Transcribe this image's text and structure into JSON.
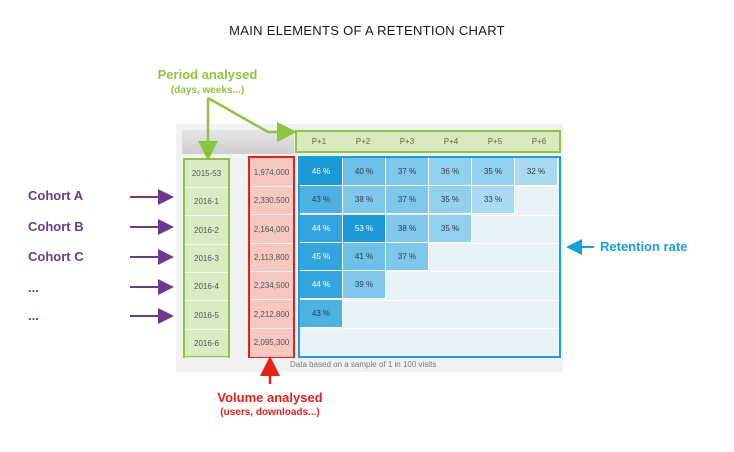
{
  "title": "MAIN ELEMENTS OF A RETENTION CHART",
  "period": {
    "label": "Period analysed",
    "sub": "(days, weeks...)"
  },
  "volume": {
    "label": "Volume analysed",
    "sub": "(users, downloads...)"
  },
  "retention_label": "Retention rate",
  "cohort_labels": [
    "Cohort A",
    "Cohort B",
    "Cohort C",
    "...",
    "..."
  ],
  "periods": [
    "P+1",
    "P+2",
    "P+3",
    "P+4",
    "P+5",
    "P+6"
  ],
  "cohorts": [
    {
      "date": "2015-53",
      "volume": "1,974,000",
      "rates": [
        "46 %",
        "40 %",
        "37 %",
        "36 %",
        "35 %",
        "32 %"
      ]
    },
    {
      "date": "2016-1",
      "volume": "2,330,500",
      "rates": [
        "43 %",
        "38 %",
        "37 %",
        "35 %",
        "33 %"
      ]
    },
    {
      "date": "2016-2",
      "volume": "2,164,000",
      "rates": [
        "44 %",
        "53 %",
        "38 %",
        "35 %"
      ]
    },
    {
      "date": "2016-3",
      "volume": "2,113,800",
      "rates": [
        "45 %",
        "41 %",
        "37 %"
      ]
    },
    {
      "date": "2016-4",
      "volume": "2,234,500",
      "rates": [
        "44 %",
        "39 %"
      ]
    },
    {
      "date": "2016-5",
      "volume": "2,212,800",
      "rates": [
        "43 %"
      ]
    },
    {
      "date": "2016-6",
      "volume": "2,095,300",
      "rates": []
    }
  ],
  "footnote": "Data based on a sample of 1 in 100 visits",
  "colors": {
    "period": "#8cc63f",
    "volume": "#e8201a",
    "retention": "#17a0dd",
    "cohort": "#6b3a8c"
  }
}
